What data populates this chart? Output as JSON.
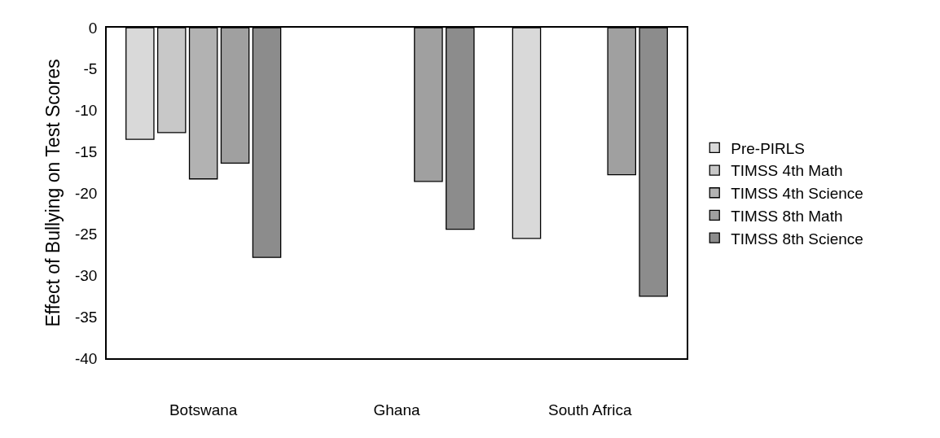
{
  "chart_data": {
    "type": "bar",
    "ylabel": "Effect of Bullying on Test Scores",
    "categories": [
      "Botswana",
      "Ghana",
      "South Africa"
    ],
    "series": [
      {
        "name": "Pre-PIRLS",
        "color": "#d9d9d9",
        "values": [
          -13.5,
          null,
          -25.5
        ]
      },
      {
        "name": "TIMSS 4th Math",
        "color": "#c8c8c8",
        "values": [
          -12.7,
          null,
          null
        ]
      },
      {
        "name": "TIMSS 4th Science",
        "color": "#b2b2b2",
        "values": [
          -18.3,
          null,
          null
        ]
      },
      {
        "name": "TIMSS 8th Math",
        "color": "#a0a0a0",
        "values": [
          -16.4,
          -18.6,
          -17.8
        ]
      },
      {
        "name": "TIMSS 8th Science",
        "color": "#8c8c8c",
        "values": [
          -27.8,
          -24.4,
          -32.5
        ]
      }
    ],
    "ylim": [
      -40,
      0
    ],
    "yticks": [
      -40,
      -35,
      -30,
      -25,
      -20,
      -15,
      -10,
      -5,
      0
    ],
    "grid": false,
    "legend": "right"
  }
}
